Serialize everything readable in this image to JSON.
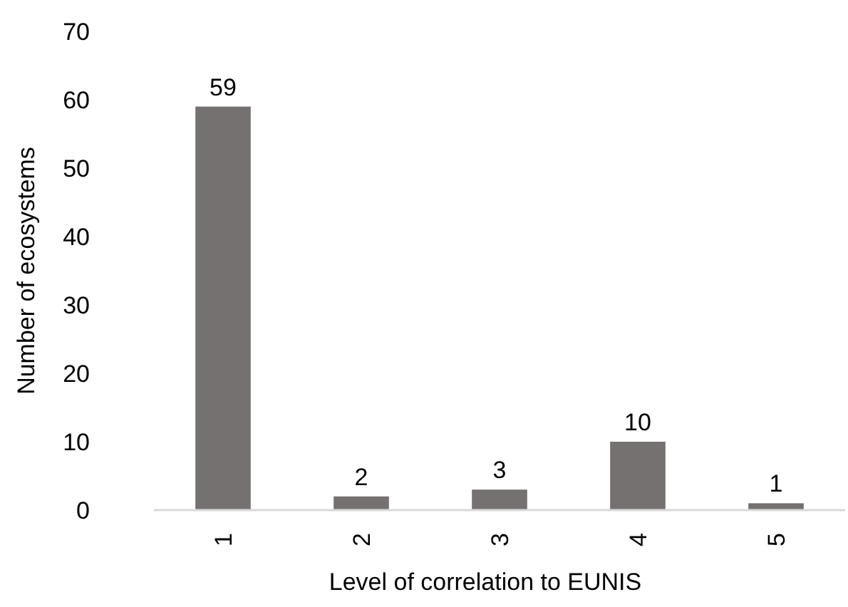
{
  "chart_data": {
    "type": "bar",
    "xlabel": "Level of correlation to EUNIS",
    "ylabel": "Number of ecosystems",
    "categories": [
      "1",
      "2",
      "3",
      "4",
      "5"
    ],
    "values": [
      59,
      2,
      3,
      10,
      1
    ],
    "color": "#767171",
    "ylim": [
      0,
      70
    ],
    "yticks": [
      0,
      10,
      20,
      30,
      40,
      50,
      60,
      70
    ],
    "data_labels": true,
    "grid": false
  }
}
